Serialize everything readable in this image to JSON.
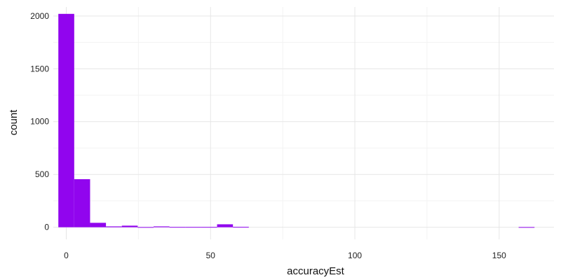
{
  "chart_data": {
    "type": "bar",
    "subtype": "histogram",
    "title": "",
    "xlabel": "accuracyEst",
    "ylabel": "count",
    "xlim": [
      -4.5,
      169
    ],
    "ylim": [
      -115,
      2085
    ],
    "x_ticks": [
      0,
      50,
      100,
      150
    ],
    "x_minor_ticks": [
      25,
      75,
      125
    ],
    "y_ticks": [
      0,
      500,
      1000,
      1500,
      2000
    ],
    "y_minor_ticks": [
      250,
      750,
      1250,
      1750
    ],
    "grid": true,
    "legend": "none",
    "bin_width": 5.5,
    "bins": [
      {
        "x": 0,
        "count": 2020
      },
      {
        "x": 5.5,
        "count": 455
      },
      {
        "x": 11,
        "count": 42
      },
      {
        "x": 16.5,
        "count": 8
      },
      {
        "x": 22,
        "count": 15
      },
      {
        "x": 27.5,
        "count": 2
      },
      {
        "x": 33,
        "count": 8
      },
      {
        "x": 38.5,
        "count": 3
      },
      {
        "x": 44,
        "count": 3
      },
      {
        "x": 49.5,
        "count": 3
      },
      {
        "x": 55,
        "count": 28
      },
      {
        "x": 60.5,
        "count": 4
      },
      {
        "x": 159.5,
        "count": 2
      }
    ],
    "colors": {
      "bar": "#9105EE",
      "grid_major": "#E6E6E6",
      "grid_minor": "#F3F3F3"
    }
  }
}
